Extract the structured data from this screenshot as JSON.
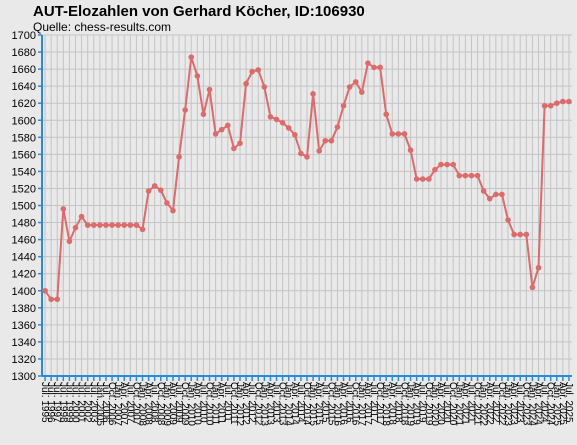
{
  "chart_data": {
    "type": "line",
    "title": "AUT-Elozahlen von Gerhard Köcher, ID:106930",
    "subtitle": "Quelle: chess-results.com",
    "categories": [
      "Jul. 1995",
      "Jul. 1996",
      "Jul. 1997",
      "Jul. 1998",
      "Jul. 1999",
      "Jul. 2000",
      "Jul. 2001",
      "Jul. 2002",
      "Jul. 2003",
      "Jan. 2005",
      "Jul. 2006",
      "Oct. 2006",
      "Jan. 2007",
      "Apr. 2007",
      "Jul. 2007",
      "Oct. 2007",
      "Jan. 2008",
      "Apr. 2008",
      "Jul. 2008",
      "Oct. 2008",
      "Jan. 2009",
      "Apr. 2009",
      "Jul. 2009",
      "Oct. 2009",
      "Jan. 2010",
      "Apr. 2010",
      "Jul. 2010",
      "Oct. 2010",
      "Jan. 2011",
      "Apr. 2011",
      "Jul. 2011",
      "Oct. 2011",
      "Jan. 2012",
      "Apr. 2012",
      "Jul. 2012",
      "Oct. 2012",
      "Jan. 2013",
      "Apr. 2013",
      "Jul. 2013",
      "Oct. 2013",
      "Jan. 2014",
      "Apr. 2014",
      "Jul. 2014",
      "Oct. 2014",
      "Jan. 2015",
      "Apr. 2015",
      "Jul. 2015",
      "Oct. 2015",
      "Jan. 2016",
      "Apr. 2016",
      "Jul. 2016",
      "Oct. 2016",
      "Jan. 2017",
      "Apr. 2017",
      "Jul. 2017",
      "Oct. 2017",
      "Jan. 2018",
      "Apr. 2018",
      "Jul. 2018",
      "Oct. 2018",
      "Jan. 2019",
      "Apr. 2019",
      "Jul. 2019",
      "Oct. 2019",
      "Jan. 2020",
      "Apr. 2020",
      "Jul. 2020",
      "Oct. 2020",
      "Jan. 2021",
      "Apr. 2021",
      "Jul. 2021",
      "Oct. 2021",
      "Jan. 2022",
      "Apr. 2022",
      "Jul. 2022",
      "Oct. 2022",
      "Jan. 2023",
      "Apr. 2023",
      "Jul. 2023",
      "Oct. 2023",
      "Jan. 2024",
      "Apr. 2024",
      "Jul. 2024",
      "Oct. 2024",
      "Jan. 2025",
      "Apr. 2025",
      "Jul. 2025"
    ],
    "series": [
      {
        "color": "#dc6b6b",
        "values": [
          1400,
          1390,
          1390,
          1496,
          1458,
          1474,
          1487,
          1477,
          1477,
          1477,
          1477,
          1477,
          1477,
          1477,
          1477,
          1477,
          1472,
          1517,
          1523,
          1518,
          1503,
          1494,
          1557,
          1612,
          1674,
          1652,
          1607,
          1636,
          1584,
          1589,
          1594,
          1567,
          1573,
          1643,
          1657,
          1659,
          1639,
          1604,
          1601,
          1597,
          1591,
          1583,
          1561,
          1557,
          1631,
          1564,
          1576,
          1576,
          1592,
          1617,
          1639,
          1645,
          1633,
          1667,
          1662,
          1662,
          1607,
          1584,
          1584,
          1584,
          1565,
          1531,
          1531,
          1531,
          1542,
          1548,
          1548,
          1548,
          1535,
          1535,
          1535,
          1535,
          1517,
          1508,
          1513,
          1513,
          1483,
          1466,
          1466,
          1466,
          1404,
          1427,
          1617,
          1617,
          1620,
          1622,
          1622
        ]
      }
    ],
    "ylim": [
      1300,
      1700
    ],
    "yticks": [
      1300,
      1320,
      1340,
      1360,
      1380,
      1400,
      1420,
      1440,
      1460,
      1480,
      1500,
      1520,
      1540,
      1560,
      1580,
      1600,
      1620,
      1640,
      1660,
      1680,
      1700
    ],
    "grid": true
  }
}
